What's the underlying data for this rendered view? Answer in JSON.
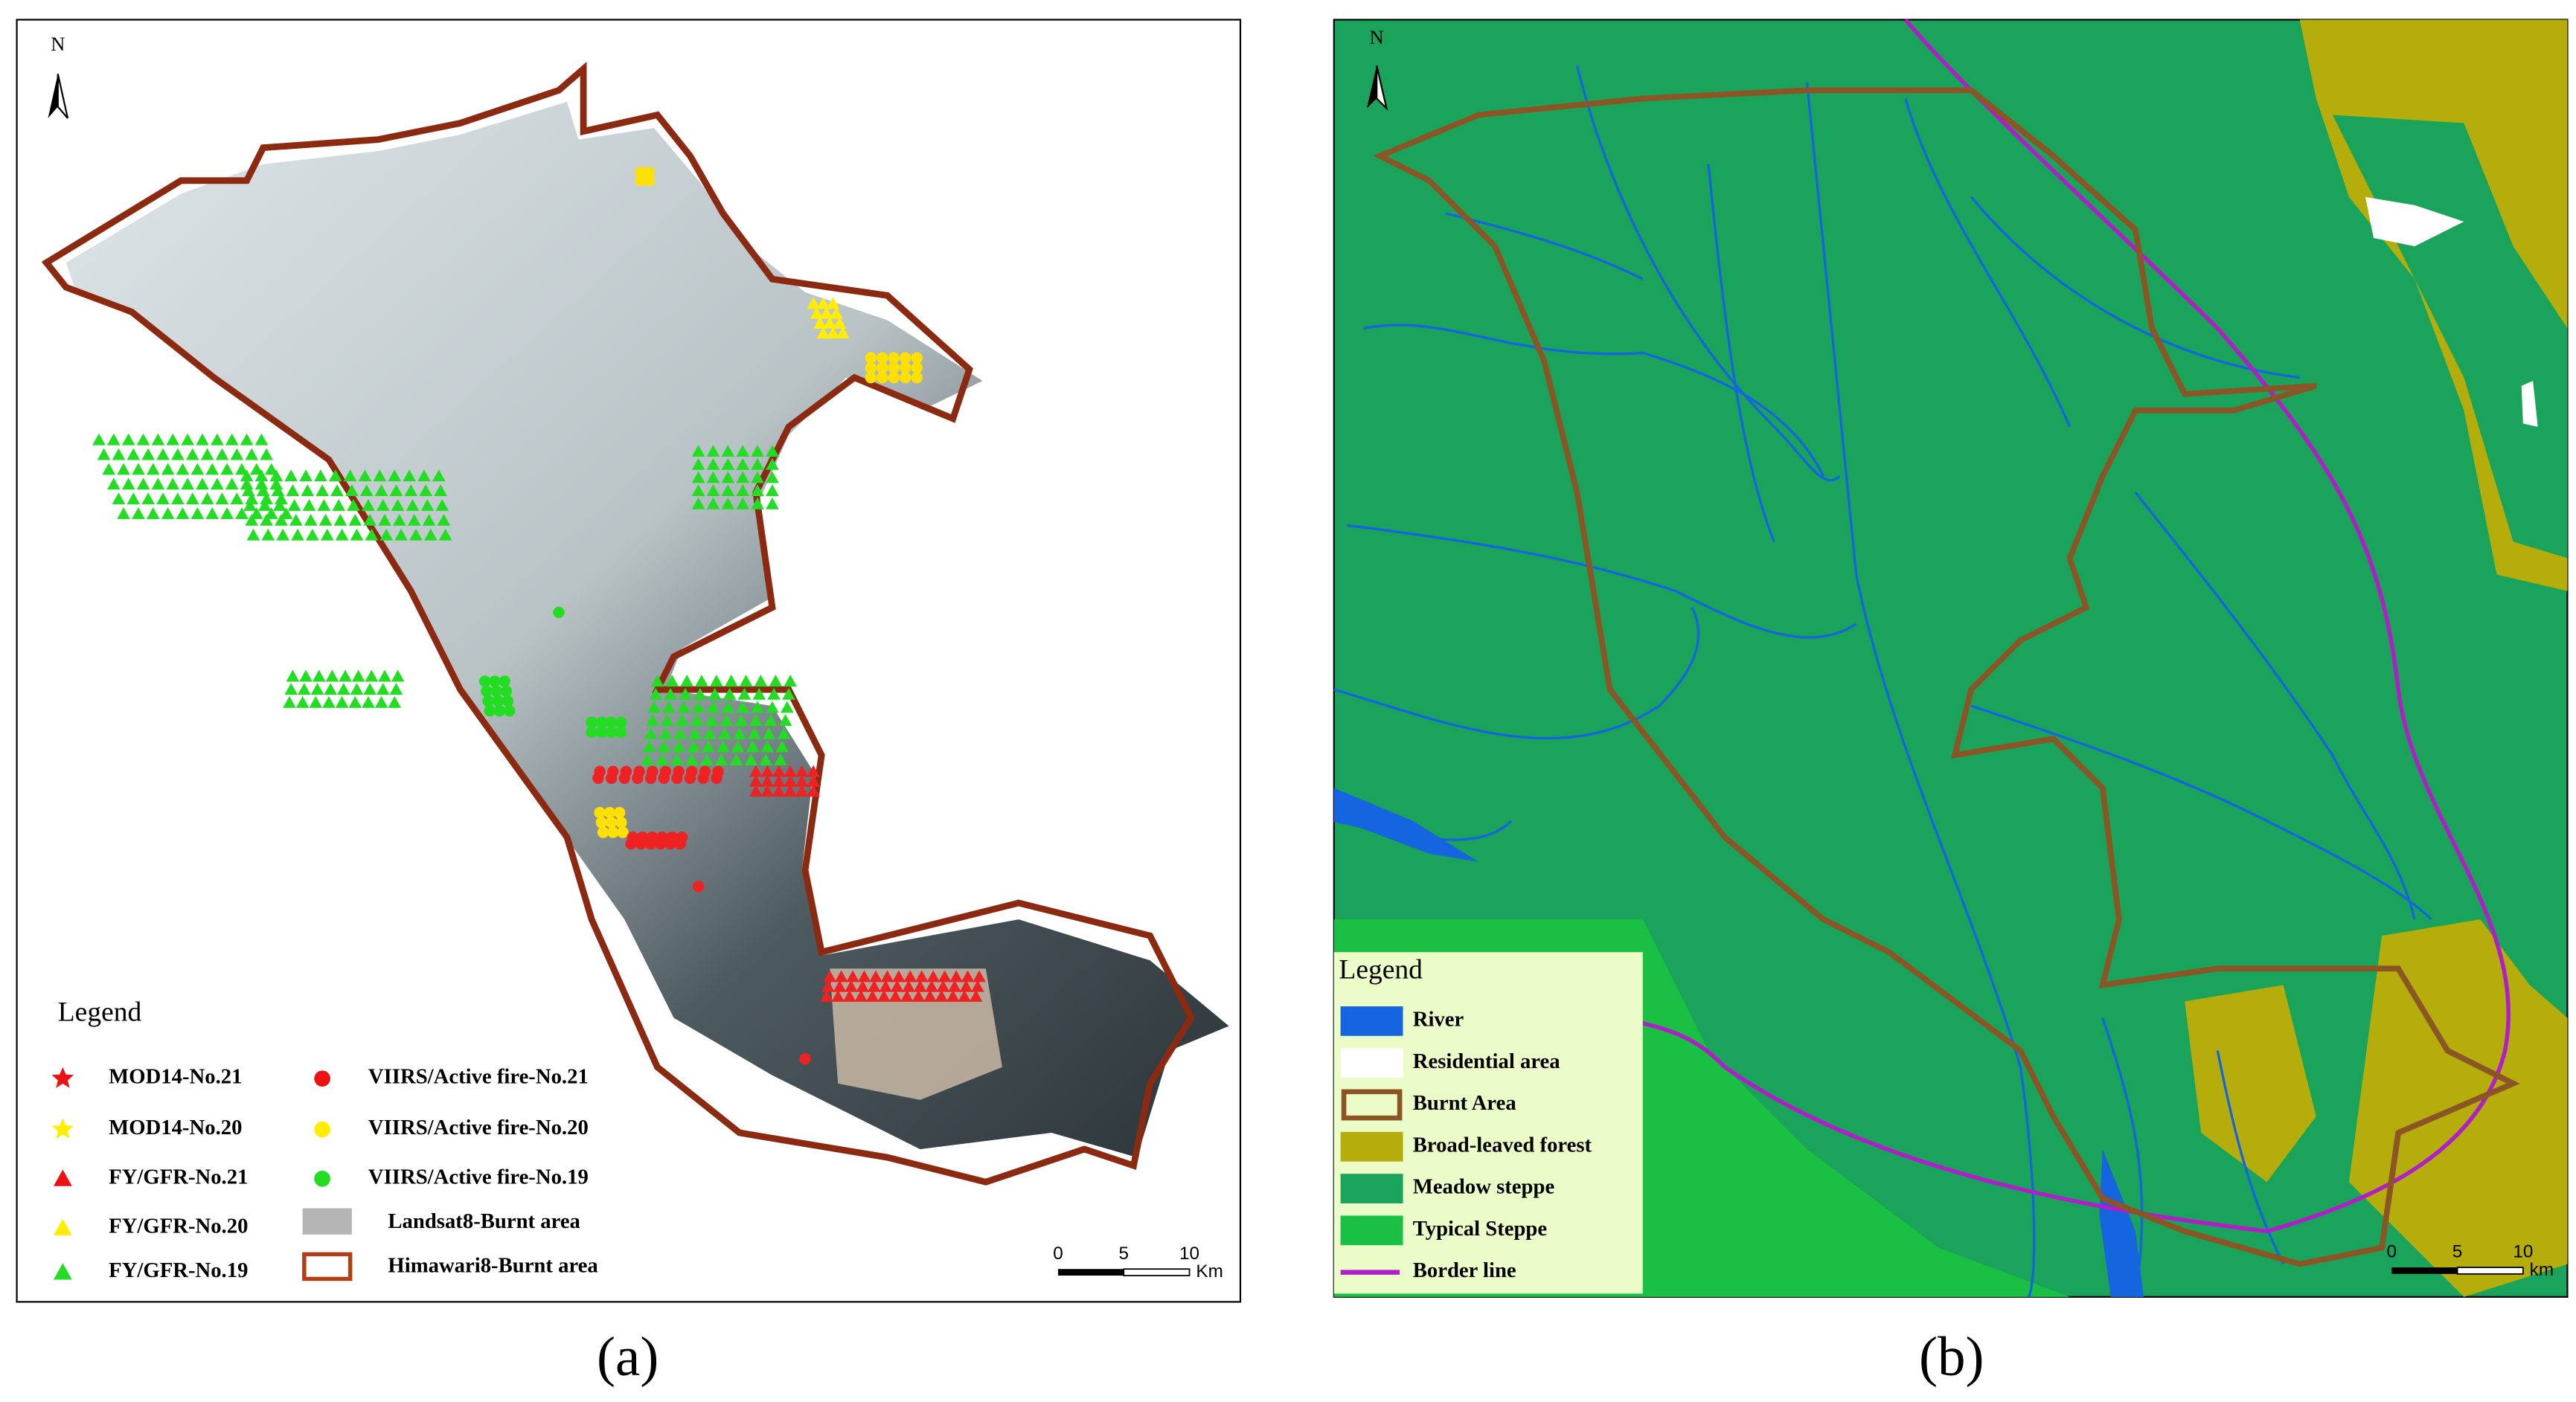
{
  "panel_a": {
    "north": "N",
    "legend": {
      "title": "Legend",
      "items": [
        "MOD14-No.21",
        "MOD14-No.20",
        "FY/GFR-No.21",
        "FY/GFR-No.20",
        "FY/GFR-No.19",
        "VIIRS/Active fire-No.21",
        "VIIRS/Active fire-No.20",
        "VIIRS/Active fire-No.19",
        "Landsat8-Burnt area",
        "Himawari8-Burnt area"
      ]
    },
    "scale_bar": {
      "ticks": [
        "0",
        "5",
        "10"
      ],
      "unit": "Km"
    },
    "label": "(a)"
  },
  "panel_b": {
    "north": "N",
    "legend": {
      "title": "Legend",
      "items": [
        "River",
        "Residential area",
        "Burnt Area",
        "Broad-leaved forest",
        "Meadow steppe",
        "Typical Steppe",
        "Border line"
      ]
    },
    "scale_bar": {
      "ticks": [
        "0",
        "5",
        "10"
      ],
      "unit": "km"
    },
    "label": "(b)"
  }
}
